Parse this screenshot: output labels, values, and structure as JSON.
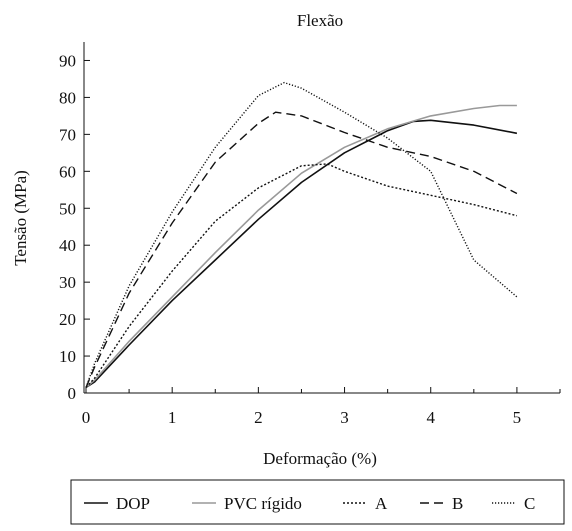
{
  "chart_data": {
    "type": "line",
    "title": "Flexão",
    "xlabel": "Deformação (%)",
    "ylabel": "Tensão (MPa)",
    "xlim": [
      0,
      5.5
    ],
    "ylim": [
      0,
      95
    ],
    "xticks": [
      0,
      1,
      2,
      3,
      4,
      5
    ],
    "yticks": [
      0,
      10,
      20,
      30,
      40,
      50,
      60,
      70,
      80,
      90
    ],
    "grid": false,
    "legend_position": "bottom",
    "series": [
      {
        "name": "DOP",
        "color": "#111111",
        "dash": "solid",
        "x": [
          0,
          0.1,
          0.5,
          1.0,
          1.5,
          2.0,
          2.5,
          3.0,
          3.5,
          3.8,
          4.0,
          4.5,
          5.0
        ],
        "y": [
          1.5,
          3,
          13,
          25,
          36,
          47,
          57,
          65,
          71,
          73.5,
          73.8,
          72.5,
          70.3
        ]
      },
      {
        "name": "PVC rígido",
        "color": "#999999",
        "dash": "solid",
        "x": [
          0,
          0.1,
          0.5,
          1.0,
          1.5,
          2.0,
          2.5,
          3.0,
          3.5,
          4.0,
          4.5,
          4.8,
          5.0
        ],
        "y": [
          1.5,
          3.5,
          14,
          26,
          38,
          49.5,
          59.5,
          66.5,
          71.5,
          75,
          77,
          77.8,
          77.8
        ]
      },
      {
        "name": "A",
        "color": "#111111",
        "dash": "fine-dotted",
        "x": [
          0,
          0.1,
          0.5,
          1.0,
          1.5,
          2.0,
          2.5,
          2.8,
          3.0,
          3.5,
          4.0,
          4.5,
          5.0
        ],
        "y": [
          1.5,
          4,
          18,
          33,
          46.5,
          55.5,
          61.5,
          62,
          60,
          56,
          53.5,
          51,
          48
        ]
      },
      {
        "name": "B",
        "color": "#111111",
        "dash": "dashed",
        "x": [
          0,
          0.1,
          0.5,
          1.0,
          1.5,
          2.0,
          2.2,
          2.5,
          3.0,
          3.5,
          4.0,
          4.5,
          5.0
        ],
        "y": [
          1.5,
          7,
          27,
          46,
          62.5,
          73,
          76,
          75,
          70.5,
          66.5,
          64,
          60,
          54
        ]
      },
      {
        "name": "C",
        "color": "#111111",
        "dash": "dotted",
        "x": [
          0,
          0.1,
          0.5,
          1.0,
          1.5,
          2.0,
          2.3,
          2.5,
          3.0,
          3.5,
          4.0,
          4.5,
          5.0
        ],
        "y": [
          1.5,
          8,
          29,
          49,
          66.5,
          80.5,
          84,
          82.5,
          76,
          69,
          60,
          36,
          26
        ]
      }
    ]
  }
}
